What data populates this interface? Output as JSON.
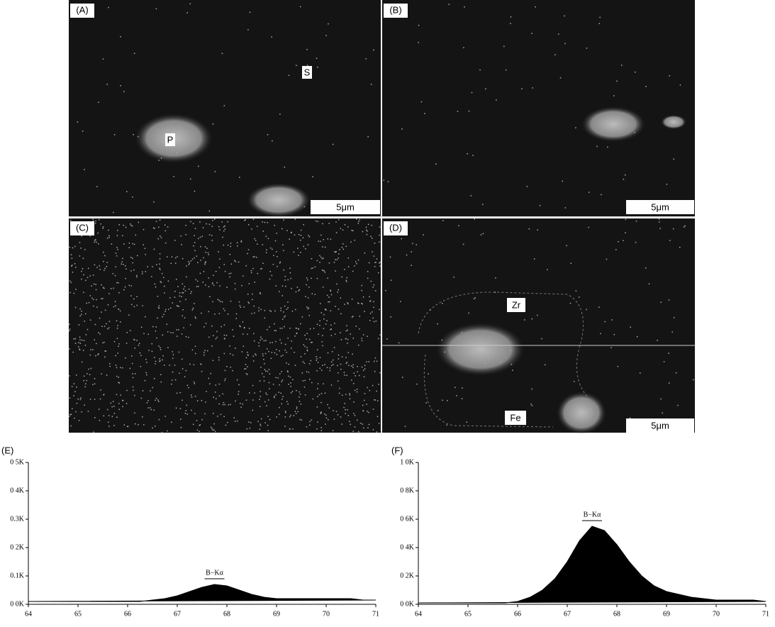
{
  "panels": [
    {
      "label": "(A)",
      "annotations": [
        "S",
        "P"
      ],
      "scale_bar": "5μm"
    },
    {
      "label": "(B)",
      "scale_bar": "5μm"
    },
    {
      "label": "(C)"
    },
    {
      "label": "(D)",
      "annotations": [
        "Zr",
        "Fe"
      ],
      "scale_bar": "5μm"
    }
  ],
  "chart_data": [
    {
      "type": "area",
      "panel_label": "(E)",
      "annotation": "B−Kα",
      "color": "#000000",
      "x": [
        64,
        64.25,
        64.5,
        64.75,
        65,
        65.25,
        65.5,
        65.75,
        66,
        66.25,
        66.5,
        66.75,
        67,
        67.25,
        67.5,
        67.75,
        68,
        68.25,
        68.5,
        68.75,
        69,
        69.25,
        69.5,
        69.75,
        70,
        70.25,
        70.5,
        70.75,
        71
      ],
      "values": [
        0.01,
        0.01,
        0.01,
        0.01,
        0.01,
        0.01,
        0.01,
        0.01,
        0.01,
        0.01,
        0.015,
        0.02,
        0.03,
        0.045,
        0.06,
        0.07,
        0.065,
        0.05,
        0.035,
        0.025,
        0.02,
        0.02,
        0.02,
        0.02,
        0.02,
        0.02,
        0.02,
        0.015,
        0.015
      ],
      "xlim": [
        64,
        71
      ],
      "xticks": [
        64,
        65,
        66,
        67,
        68,
        69,
        70,
        71
      ],
      "ylim": [
        0,
        0.5
      ],
      "yticks": [
        {
          "value": 0,
          "label": "0 0K"
        },
        {
          "value": 0.1,
          "label": "0.1K"
        },
        {
          "value": 0.2,
          "label": "0 2K"
        },
        {
          "value": 0.3,
          "label": "0.3K"
        },
        {
          "value": 0.4,
          "label": "0 4K"
        },
        {
          "value": 0.5,
          "label": "0 5K"
        }
      ]
    },
    {
      "type": "area",
      "panel_label": "(F)",
      "annotation": "B−Kα",
      "color": "#000000",
      "x": [
        64,
        64.25,
        64.5,
        64.75,
        65,
        65.25,
        65.5,
        65.75,
        66,
        66.25,
        66.5,
        66.75,
        67,
        67.25,
        67.5,
        67.75,
        68,
        68.25,
        68.5,
        68.75,
        69,
        69.25,
        69.5,
        69.75,
        70,
        70.25,
        70.5,
        70.75,
        71
      ],
      "values": [
        0.01,
        0.01,
        0.01,
        0.01,
        0.01,
        0.01,
        0.01,
        0.01,
        0.02,
        0.05,
        0.1,
        0.18,
        0.3,
        0.45,
        0.55,
        0.52,
        0.42,
        0.3,
        0.2,
        0.13,
        0.09,
        0.07,
        0.05,
        0.04,
        0.03,
        0.03,
        0.03,
        0.03,
        0.02
      ],
      "xlim": [
        64,
        71
      ],
      "xticks": [
        64,
        65,
        66,
        67,
        68,
        69,
        70,
        71
      ],
      "ylim": [
        0,
        1.0
      ],
      "yticks": [
        {
          "value": 0,
          "label": "0 0K"
        },
        {
          "value": 0.2,
          "label": "0 2K"
        },
        {
          "value": 0.4,
          "label": "0 4K"
        },
        {
          "value": 0.6,
          "label": "0 6K"
        },
        {
          "value": 0.8,
          "label": "0 8K"
        },
        {
          "value": 1.0,
          "label": "1 0K"
        }
      ]
    }
  ]
}
